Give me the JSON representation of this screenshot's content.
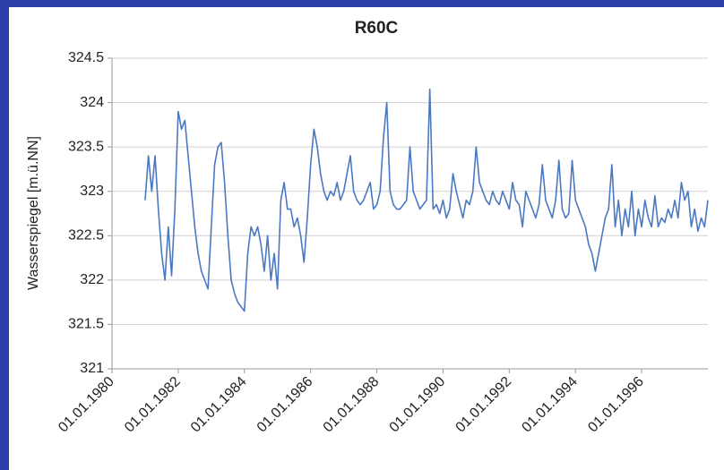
{
  "chart_data": {
    "type": "line",
    "title": "R60C",
    "y_label": "Wasserspiegel [m.ü.NN]",
    "xlim": [
      1980,
      1998
    ],
    "ylim": [
      321,
      324.5
    ],
    "grid": true,
    "xticks": [
      {
        "value": 1980,
        "label": "01.01.1980"
      },
      {
        "value": 1982,
        "label": "01.01.1982"
      },
      {
        "value": 1984,
        "label": "01.01.1984"
      },
      {
        "value": 1986,
        "label": "01.01.1986"
      },
      {
        "value": 1988,
        "label": "01.01.1988"
      },
      {
        "value": 1990,
        "label": "01.01.1990"
      },
      {
        "value": 1992,
        "label": "01.01.1992"
      },
      {
        "value": 1994,
        "label": "01.01.1994"
      },
      {
        "value": 1996,
        "label": "01.01.1996"
      }
    ],
    "yticks": [
      321,
      321.5,
      322,
      322.5,
      323,
      323.5,
      324,
      324.5
    ],
    "x": [
      1981.0,
      1981.1,
      1981.2,
      1981.3,
      1981.4,
      1981.5,
      1981.6,
      1981.7,
      1981.8,
      1981.9,
      1982.0,
      1982.1,
      1982.2,
      1982.3,
      1982.4,
      1982.5,
      1982.6,
      1982.7,
      1982.8,
      1982.9,
      1983.0,
      1983.1,
      1983.2,
      1983.3,
      1983.4,
      1983.5,
      1983.6,
      1983.7,
      1983.8,
      1983.9,
      1984.0,
      1984.1,
      1984.2,
      1984.3,
      1984.4,
      1984.5,
      1984.6,
      1984.7,
      1984.8,
      1984.9,
      1985.0,
      1985.1,
      1985.2,
      1985.3,
      1985.4,
      1985.5,
      1985.6,
      1985.7,
      1985.8,
      1985.9,
      1986.0,
      1986.1,
      1986.2,
      1986.3,
      1986.4,
      1986.5,
      1986.6,
      1986.7,
      1986.8,
      1986.9,
      1987.0,
      1987.1,
      1987.2,
      1987.3,
      1987.4,
      1987.5,
      1987.6,
      1987.7,
      1987.8,
      1987.9,
      1988.0,
      1988.1,
      1988.2,
      1988.3,
      1988.4,
      1988.5,
      1988.6,
      1988.7,
      1988.8,
      1988.9,
      1989.0,
      1989.1,
      1989.2,
      1989.3,
      1989.4,
      1989.5,
      1989.6,
      1989.7,
      1989.8,
      1989.9,
      1990.0,
      1990.1,
      1990.2,
      1990.3,
      1990.4,
      1990.5,
      1990.6,
      1990.7,
      1990.8,
      1990.9,
      1991.0,
      1991.1,
      1991.2,
      1991.3,
      1991.4,
      1991.5,
      1991.6,
      1991.7,
      1991.8,
      1991.9,
      1992.0,
      1992.1,
      1992.2,
      1992.3,
      1992.4,
      1992.5,
      1992.6,
      1992.7,
      1992.8,
      1992.9,
      1993.0,
      1993.1,
      1993.2,
      1993.3,
      1993.4,
      1993.5,
      1993.6,
      1993.7,
      1993.8,
      1993.9,
      1994.0,
      1994.1,
      1994.2,
      1994.3,
      1994.4,
      1994.5,
      1994.6,
      1994.7,
      1994.8,
      1994.9,
      1995.0,
      1995.1,
      1995.2,
      1995.3,
      1995.4,
      1995.5,
      1995.6,
      1995.7,
      1995.8,
      1995.9,
      1996.0,
      1996.1,
      1996.2,
      1996.3,
      1996.4,
      1996.5,
      1996.6,
      1996.7,
      1996.8,
      1996.9,
      1997.0,
      1997.1,
      1997.2,
      1997.3,
      1997.4,
      1997.5,
      1997.6,
      1997.7,
      1997.8,
      1997.9,
      1998.0
    ],
    "series": [
      {
        "color": "#4a78c2",
        "values": [
          322.9,
          323.4,
          323.0,
          323.4,
          322.8,
          322.3,
          322.0,
          322.6,
          322.05,
          322.8,
          323.9,
          323.7,
          323.8,
          323.4,
          323.0,
          322.6,
          322.3,
          322.1,
          322.0,
          321.9,
          322.6,
          323.3,
          323.5,
          323.55,
          323.1,
          322.5,
          322.0,
          321.85,
          321.75,
          321.7,
          321.65,
          322.3,
          322.6,
          322.5,
          322.6,
          322.4,
          322.1,
          322.5,
          322.0,
          322.3,
          321.9,
          322.9,
          323.1,
          322.8,
          322.8,
          322.6,
          322.7,
          322.5,
          322.2,
          322.7,
          323.3,
          323.7,
          323.5,
          323.2,
          323.0,
          322.9,
          323.0,
          322.95,
          323.1,
          322.9,
          323.0,
          323.2,
          323.4,
          323.0,
          322.9,
          322.85,
          322.9,
          323.0,
          323.1,
          322.8,
          322.85,
          323.0,
          323.6,
          324.0,
          323.0,
          322.85,
          322.8,
          322.8,
          322.85,
          322.9,
          323.5,
          323.0,
          322.9,
          322.8,
          322.85,
          322.9,
          324.15,
          322.8,
          322.85,
          322.75,
          322.9,
          322.7,
          322.8,
          323.2,
          323.0,
          322.85,
          322.7,
          322.9,
          322.85,
          323.0,
          323.5,
          323.1,
          323.0,
          322.9,
          322.85,
          323.0,
          322.9,
          322.85,
          323.0,
          322.9,
          322.8,
          323.1,
          322.9,
          322.85,
          322.6,
          323.0,
          322.9,
          322.8,
          322.7,
          322.85,
          323.3,
          322.9,
          322.8,
          322.7,
          322.9,
          323.35,
          322.8,
          322.7,
          322.75,
          323.35,
          322.9,
          322.8,
          322.7,
          322.6,
          322.4,
          322.3,
          322.1,
          322.3,
          322.5,
          322.7,
          322.8,
          323.3,
          322.6,
          322.9,
          322.5,
          322.8,
          322.6,
          323.0,
          322.5,
          322.8,
          322.6,
          322.9,
          322.7,
          322.6,
          322.95,
          322.6,
          322.7,
          322.65,
          322.8,
          322.7,
          322.9,
          322.7,
          323.1,
          322.9,
          323.0,
          322.6,
          322.8,
          322.55,
          322.7,
          322.6,
          322.9
        ]
      }
    ]
  }
}
